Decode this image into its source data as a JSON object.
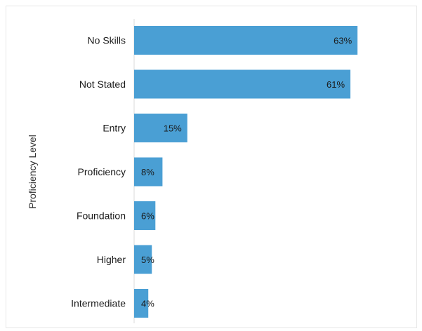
{
  "chart_data": {
    "type": "bar",
    "orientation": "horizontal",
    "categories": [
      "No Skills",
      "Not Stated",
      "Entry",
      "Proficiency",
      "Foundation",
      "Higher",
      "Intermediate"
    ],
    "values": [
      63,
      61,
      15,
      8,
      6,
      5,
      4
    ],
    "value_labels": [
      "63%",
      "61%",
      "15%",
      "8%",
      "6%",
      "5%",
      "4%"
    ],
    "ylabel": "Proficiency Level",
    "xlim": [
      0,
      80
    ],
    "grid": false,
    "legend": "none",
    "colors": {
      "bar": "#4a9fd4",
      "text": "#1a1a1a",
      "axis": "#d9d9d9"
    }
  }
}
